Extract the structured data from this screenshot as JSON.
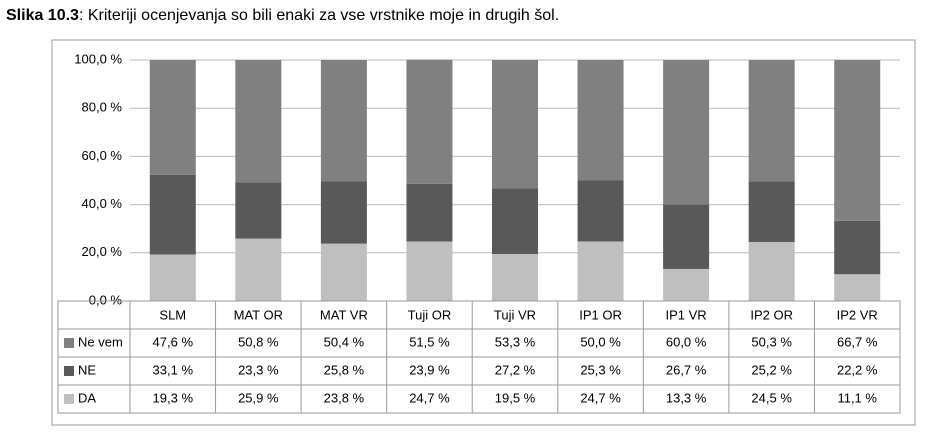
{
  "chart_data": {
    "type": "stacked_bar",
    "figure_label": "Slika 10.3",
    "title": ": Kriteriji ocenjevanja so bili enaki za vse vrstnike moje in drugih šol.",
    "categories": [
      "SLM",
      "MAT OR",
      "MAT VR",
      "Tuji OR",
      "Tuji VR",
      "IP1 OR",
      "IP1 VR",
      "IP2 OR",
      "IP2 VR"
    ],
    "series": [
      {
        "name": "DA",
        "color": "#bfbfbf",
        "values": [
          19.3,
          25.9,
          23.8,
          24.7,
          19.5,
          24.7,
          13.3,
          24.5,
          11.1
        ],
        "value_labels": [
          "19,3 %",
          "25,9 %",
          "23,8 %",
          "24,7 %",
          "19,5 %",
          "24,7 %",
          "13,3 %",
          "24,5 %",
          "11,1 %"
        ]
      },
      {
        "name": "NE",
        "color": "#595959",
        "values": [
          33.1,
          23.3,
          25.8,
          23.9,
          27.2,
          25.3,
          26.7,
          25.2,
          22.2
        ],
        "value_labels": [
          "33,1 %",
          "23,3 %",
          "25,8 %",
          "23,9 %",
          "27,2 %",
          "25,3 %",
          "26,7 %",
          "25,2 %",
          "22,2 %"
        ]
      },
      {
        "name": "Ne vem",
        "color": "#808080",
        "values": [
          47.6,
          50.8,
          50.4,
          51.5,
          53.3,
          50.0,
          60.0,
          50.3,
          66.7
        ],
        "value_labels": [
          "47,6 %",
          "50,8 %",
          "50,4 %",
          "51,5 %",
          "53,3 %",
          "50,0 %",
          "60,0 %",
          "50,3 %",
          "66,7 %"
        ]
      }
    ],
    "ylim": [
      0,
      100
    ],
    "yticks": [
      {
        "value": 0,
        "label": "0,0 %"
      },
      {
        "value": 20,
        "label": "20,0 %"
      },
      {
        "value": 40,
        "label": "40,0 %"
      },
      {
        "value": 60,
        "label": "60,0 %"
      },
      {
        "value": 80,
        "label": "80,0 %"
      },
      {
        "value": 100,
        "label": "100,0 %"
      }
    ],
    "grid": true
  }
}
